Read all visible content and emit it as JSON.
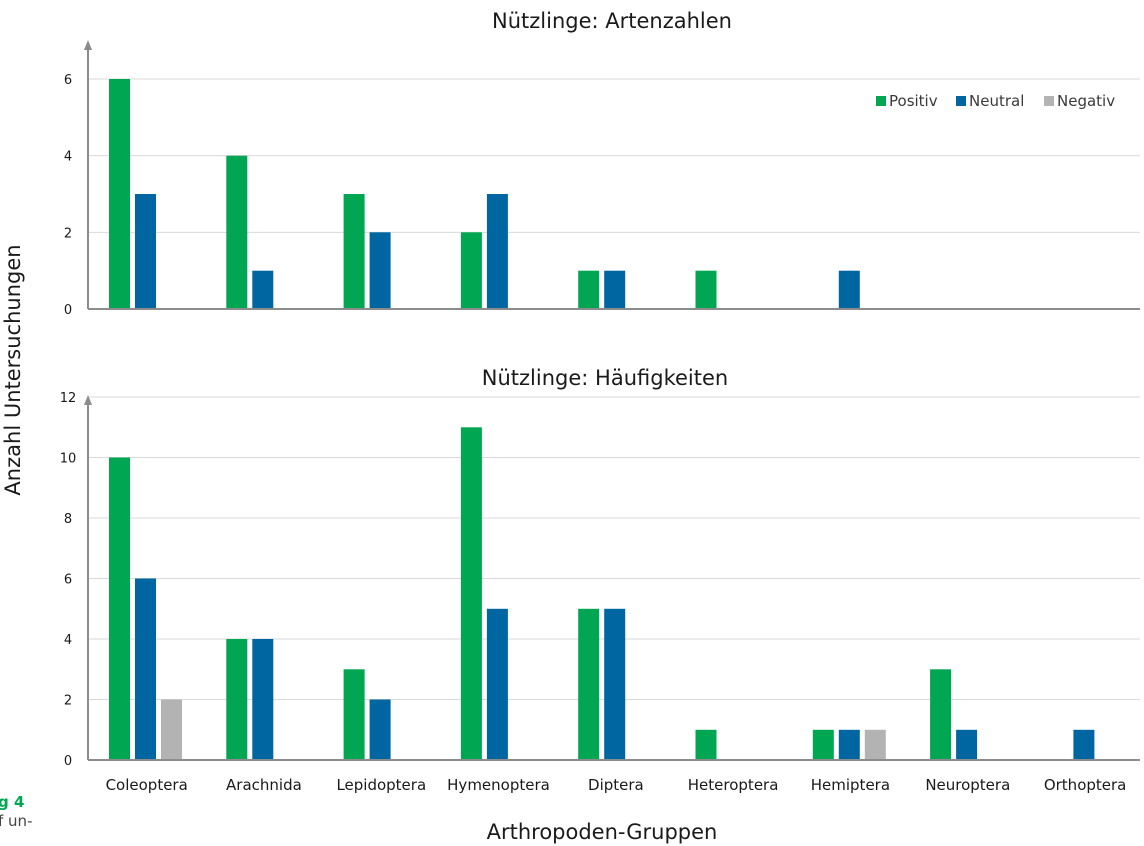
{
  "caption": {
    "label": "g 4",
    "text": "f un-"
  },
  "colors": {
    "Positiv": "#00a651",
    "Neutral": "#0066a1",
    "Negativ": "#b3b3b3"
  },
  "shared_labels": {
    "ylabel": "Anzahl Untersuchungen",
    "xlabel": "Arthropoden-Gruppen"
  },
  "chart_data": [
    {
      "type": "bar",
      "title": "Nützlinge: Artenzahlen",
      "ylim": [
        0,
        6
      ],
      "yticks": [
        0,
        2,
        4,
        6
      ],
      "grid": true,
      "legend": {
        "placement": "top-right"
      },
      "categories": [
        "Coleoptera",
        "Arachnida",
        "Lepidoptera",
        "Hymenoptera",
        "Diptera",
        "Heteroptera",
        "Hemiptera",
        "Neuroptera",
        "Orthoptera"
      ],
      "series": [
        {
          "name": "Positiv",
          "values": [
            6,
            4,
            3,
            2,
            1,
            1,
            0,
            0,
            0
          ]
        },
        {
          "name": "Neutral",
          "values": [
            3,
            1,
            2,
            3,
            1,
            0,
            1,
            0,
            0
          ]
        },
        {
          "name": "Negativ",
          "values": [
            0,
            0,
            0,
            0,
            0,
            0,
            0,
            0,
            0
          ]
        }
      ]
    },
    {
      "type": "bar",
      "title": "Nützlinge: Häufigkeiten",
      "ylim": [
        0,
        12
      ],
      "yticks": [
        0,
        2,
        4,
        6,
        8,
        10,
        12
      ],
      "grid": true,
      "categories": [
        "Coleoptera",
        "Arachnida",
        "Lepidoptera",
        "Hymenoptera",
        "Diptera",
        "Heteroptera",
        "Hemiptera",
        "Neuroptera",
        "Orthoptera"
      ],
      "series": [
        {
          "name": "Positiv",
          "values": [
            10,
            4,
            3,
            11,
            5,
            1,
            1,
            3,
            0
          ]
        },
        {
          "name": "Neutral",
          "values": [
            6,
            4,
            2,
            5,
            5,
            0,
            1,
            1,
            1
          ]
        },
        {
          "name": "Negativ",
          "values": [
            2,
            0,
            0,
            0,
            0,
            0,
            1,
            0,
            0
          ]
        }
      ]
    }
  ]
}
